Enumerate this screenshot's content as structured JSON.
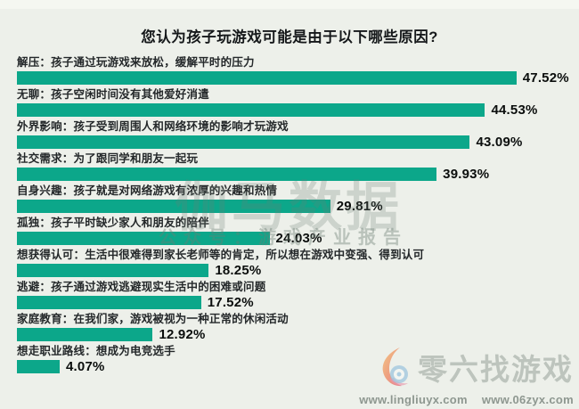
{
  "title": "您认为孩子玩游戏可能是由于以下哪些原因?",
  "colors": {
    "background": "#edf0ea",
    "bar": "#0ca78a",
    "label_text": "#24282a",
    "value_text": "#0b0e0d"
  },
  "chart_data": {
    "type": "bar",
    "orientation": "horizontal",
    "title": "您认为孩子玩游戏可能是由于以下哪些原因?",
    "unit": "%",
    "xlim": [
      0,
      50
    ],
    "grid": false,
    "legend": "none",
    "categories": [
      "解压：孩子通过玩游戏来放松，缓解平时的压力",
      "无聊：孩子空闲时间没有其他爱好消遣",
      "外界影响：孩子受到周围人和网络环境的影响才玩游戏",
      "社交需求：为了跟同学和朋友一起玩",
      "自身兴趣：孩子就是对网络游戏有浓厚的兴趣和热情",
      "孤独：孩子平时缺少家人和朋友的陪伴",
      "想获得认可：生活中很难得到家长老师等的肯定，所以想在游戏中变强、得到认可",
      "逃避：孩子通过游戏逃避现实生活中的困难或问题",
      "家庭教育：在我们家，游戏被视为一种正常的休闲活动",
      "想走职业路线：想成为电竞选手"
    ],
    "values": [
      47.52,
      44.53,
      43.09,
      39.93,
      29.81,
      24.03,
      18.25,
      17.52,
      12.92,
      4.07
    ],
    "value_labels": [
      "47.52%",
      "44.53%",
      "43.09%",
      "39.93%",
      "29.81%",
      "24.03%",
      "18.25%",
      "17.52%",
      "12.92%",
      "4.07%"
    ]
  },
  "watermark": {
    "line1": "伽马数据",
    "line2": "公众号：游戏产业报告"
  },
  "footer_logo": {
    "name": "零六找游戏",
    "url_left": "www.lingliuyx.com",
    "url_right": "www.06zyx.com"
  }
}
